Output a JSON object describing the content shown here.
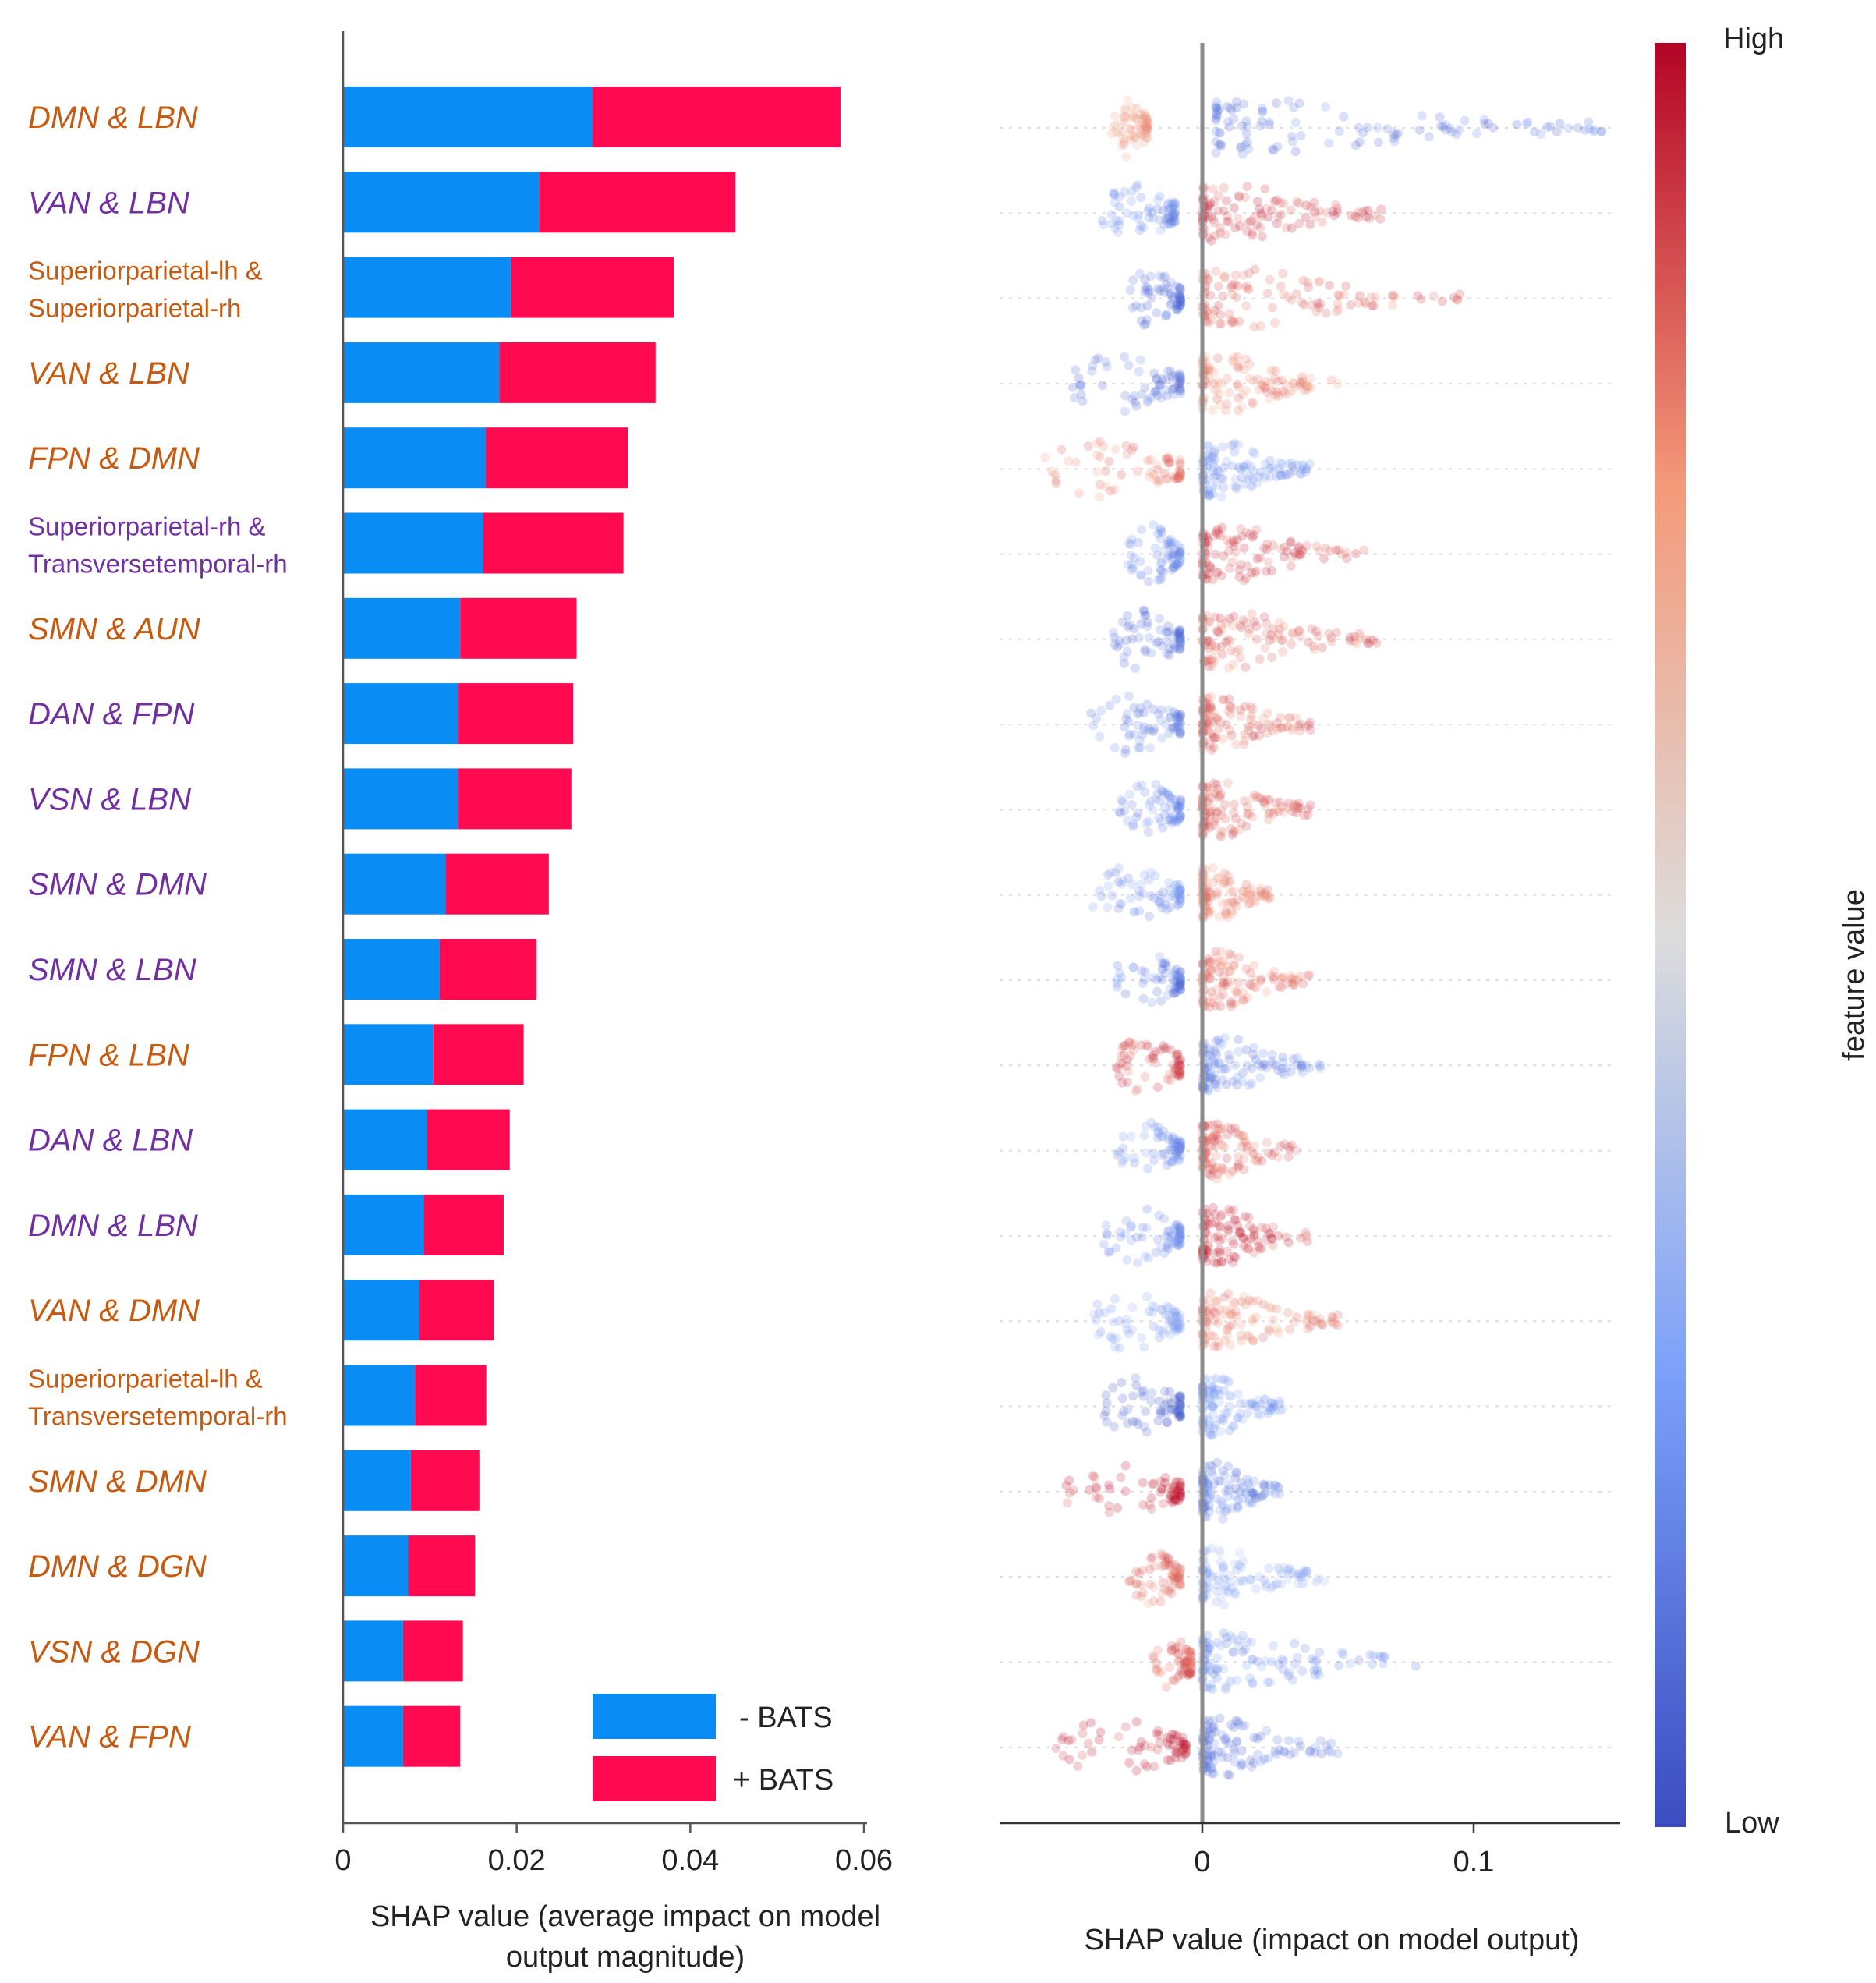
{
  "chart_data": [
    {
      "type": "bar",
      "stacked": true,
      "orientation": "horizontal",
      "xlabel_lines": [
        "SHAP value (average impact on model",
        "output magnitude)"
      ],
      "xlim": [
        0,
        0.06
      ],
      "xticks": [
        0,
        0.02,
        0.04,
        0.06
      ],
      "xtick_labels": [
        "0",
        "0.02",
        "0.04",
        "0.06"
      ],
      "legend_position": "bottom-right",
      "categories": [
        {
          "label": "DMN & LBN",
          "color": "#c55a11"
        },
        {
          "label": "VAN & LBN",
          "color": "#7030a0"
        },
        {
          "label": "Superiorparietal-lh & Superiorparietal-rh",
          "lines": [
            "Superiorparietal-lh &",
            "Superiorparietal-rh"
          ],
          "color": "#c55a11"
        },
        {
          "label": "VAN & LBN",
          "color": "#c55a11"
        },
        {
          "label": "FPN & DMN",
          "color": "#c55a11"
        },
        {
          "label": "Superiorparietal-rh & Transversetemporal-rh",
          "lines": [
            "Superiorparietal-rh &",
            "Transversetemporal-rh"
          ],
          "color": "#7030a0"
        },
        {
          "label": "SMN & AUN",
          "color": "#c55a11"
        },
        {
          "label": "DAN & FPN",
          "color": "#7030a0"
        },
        {
          "label": "VSN & LBN",
          "color": "#7030a0"
        },
        {
          "label": "SMN & DMN",
          "color": "#7030a0"
        },
        {
          "label": "SMN & LBN",
          "color": "#7030a0"
        },
        {
          "label": "FPN & LBN",
          "color": "#c55a11"
        },
        {
          "label": "DAN & LBN",
          "color": "#7030a0"
        },
        {
          "label": "DMN & LBN",
          "color": "#7030a0"
        },
        {
          "label": "VAN & DMN",
          "color": "#c55a11"
        },
        {
          "label": "Superiorparietal-lh & Transversetemporal-rh",
          "lines": [
            "Superiorparietal-lh &",
            "Transversetemporal-rh"
          ],
          "color": "#c55a11"
        },
        {
          "label": "SMN & DMN",
          "color": "#c55a11"
        },
        {
          "label": "DMN & DGN",
          "color": "#c55a11"
        },
        {
          "label": "VSN & DGN",
          "color": "#c55a11"
        },
        {
          "label": "VAN & FPN",
          "color": "#c55a11"
        }
      ],
      "series": [
        {
          "name": "- BATS",
          "color": "#0a8cf5",
          "values": [
            0.0287,
            0.0226,
            0.0193,
            0.018,
            0.0164,
            0.0161,
            0.0135,
            0.0133,
            0.0133,
            0.0118,
            0.0111,
            0.0104,
            0.0097,
            0.0093,
            0.0088,
            0.0083,
            0.0078,
            0.0075,
            0.0069,
            0.0069
          ]
        },
        {
          "name": "+ BATS",
          "color": "#ff0a50",
          "values": [
            0.0286,
            0.0226,
            0.0188,
            0.018,
            0.0164,
            0.0162,
            0.0134,
            0.0132,
            0.013,
            0.0119,
            0.0112,
            0.0104,
            0.0095,
            0.0092,
            0.0086,
            0.0082,
            0.0079,
            0.0077,
            0.0069,
            0.0066
          ]
        }
      ]
    },
    {
      "type": "scatter",
      "subtype": "beeswarm",
      "xlabel": "SHAP value (impact on model output)",
      "xlim": [
        -0.075,
        0.155
      ],
      "xticks": [
        0,
        0.1
      ],
      "xtick_labels": [
        "0",
        "0.1"
      ],
      "zero_line": true,
      "colorbar": {
        "label": "feature value",
        "high": "High",
        "low": "Low",
        "colormap": "coolwarm",
        "position": "right"
      },
      "rows": [
        {
          "neg": [
            -0.035,
            -0.02
          ],
          "pos": [
            0.005,
            0.15
          ],
          "neg_hue": 0.72,
          "pos_hue": 0.12
        },
        {
          "neg": [
            -0.04,
            -0.01
          ],
          "pos": [
            0.0,
            0.07
          ],
          "neg_hue": 0.18,
          "pos_hue": 0.92
        },
        {
          "neg": [
            -0.03,
            -0.008
          ],
          "pos": [
            0.0,
            0.095
          ],
          "neg_hue": 0.12,
          "pos_hue": 0.85
        },
        {
          "neg": [
            -0.055,
            -0.008
          ],
          "pos": [
            0.0,
            0.05
          ],
          "neg_hue": 0.12,
          "pos_hue": 0.78
        },
        {
          "neg": [
            -0.065,
            -0.008
          ],
          "pos": [
            0.0,
            0.04
          ],
          "neg_hue": 0.8,
          "pos_hue": 0.22
        },
        {
          "neg": [
            -0.03,
            -0.008
          ],
          "pos": [
            0.0,
            0.06
          ],
          "neg_hue": 0.18,
          "pos_hue": 0.9
        },
        {
          "neg": [
            -0.038,
            -0.008
          ],
          "pos": [
            0.0,
            0.065
          ],
          "neg_hue": 0.1,
          "pos_hue": 0.85
        },
        {
          "neg": [
            -0.045,
            -0.008
          ],
          "pos": [
            0.0,
            0.04
          ],
          "neg_hue": 0.15,
          "pos_hue": 0.85
        },
        {
          "neg": [
            -0.035,
            -0.008
          ],
          "pos": [
            0.0,
            0.04
          ],
          "neg_hue": 0.18,
          "pos_hue": 0.85
        },
        {
          "neg": [
            -0.045,
            -0.008
          ],
          "pos": [
            0.0,
            0.025
          ],
          "neg_hue": 0.2,
          "pos_hue": 0.78
        },
        {
          "neg": [
            -0.035,
            -0.008
          ],
          "pos": [
            0.0,
            0.04
          ],
          "neg_hue": 0.15,
          "pos_hue": 0.82
        },
        {
          "neg": [
            -0.035,
            -0.008
          ],
          "pos": [
            0.0,
            0.045
          ],
          "neg_hue": 0.9,
          "pos_hue": 0.15
        },
        {
          "neg": [
            -0.035,
            -0.008
          ],
          "pos": [
            0.0,
            0.035
          ],
          "neg_hue": 0.2,
          "pos_hue": 0.85
        },
        {
          "neg": [
            -0.04,
            -0.008
          ],
          "pos": [
            0.0,
            0.04
          ],
          "neg_hue": 0.2,
          "pos_hue": 0.92
        },
        {
          "neg": [
            -0.045,
            -0.008
          ],
          "pos": [
            0.0,
            0.05
          ],
          "neg_hue": 0.25,
          "pos_hue": 0.8
        },
        {
          "neg": [
            -0.04,
            -0.008
          ],
          "pos": [
            0.0,
            0.03
          ],
          "neg_hue": 0.05,
          "pos_hue": 0.25
        },
        {
          "neg": [
            -0.055,
            -0.008
          ],
          "pos": [
            0.0,
            0.03
          ],
          "neg_hue": 0.95,
          "pos_hue": 0.15
        },
        {
          "neg": [
            -0.03,
            -0.008
          ],
          "pos": [
            0.0,
            0.045
          ],
          "neg_hue": 0.82,
          "pos_hue": 0.3
        },
        {
          "neg": [
            -0.02,
            -0.004
          ],
          "pos": [
            0.0,
            0.08
          ],
          "neg_hue": 0.85,
          "pos_hue": 0.2
        },
        {
          "neg": [
            -0.06,
            -0.006
          ],
          "pos": [
            0.0,
            0.05
          ],
          "neg_hue": 0.95,
          "pos_hue": 0.12
        }
      ]
    }
  ]
}
